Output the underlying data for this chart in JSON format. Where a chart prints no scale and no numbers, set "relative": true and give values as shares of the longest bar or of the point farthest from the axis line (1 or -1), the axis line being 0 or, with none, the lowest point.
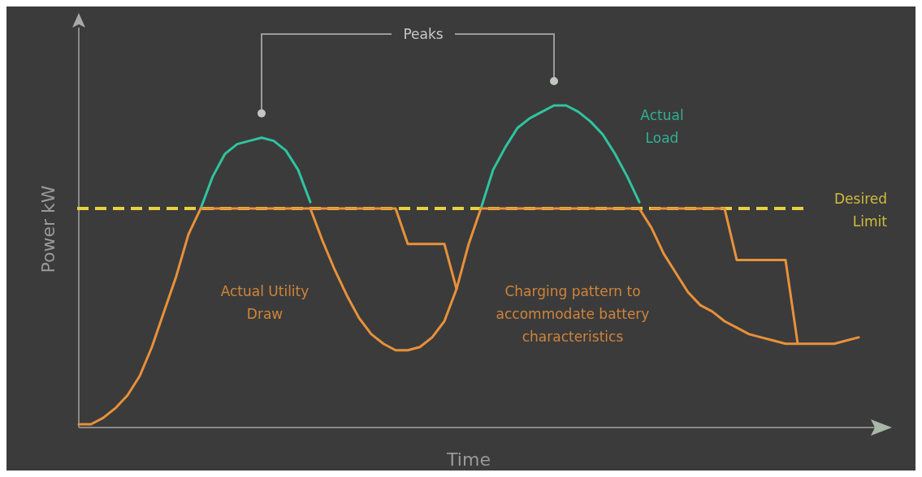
{
  "chart_data": {
    "type": "line",
    "relative": true,
    "xlabel": "Time",
    "ylabel": "Power kW",
    "categories": [
      null,
      null,
      null,
      null,
      null,
      null,
      null,
      null,
      null,
      null,
      null,
      null,
      null,
      null,
      null,
      null,
      null,
      null,
      null,
      null,
      null,
      null,
      null,
      null,
      null,
      null,
      null,
      null,
      null,
      null,
      null,
      null,
      null,
      null,
      null,
      null,
      null,
      null,
      null,
      null,
      null,
      null,
      null,
      null,
      null,
      null,
      null,
      null,
      null,
      null,
      null,
      null,
      null,
      null,
      null,
      null,
      null,
      null,
      null,
      null,
      null,
      null,
      null,
      null,
      null
    ],
    "series": [
      {
        "color": "#2fc4a0",
        "values": [
          null,
          null,
          null,
          null,
          null,
          null,
          null,
          null,
          null,
          null,
          0.68,
          0.78,
          0.85,
          0.88,
          0.89,
          0.9,
          0.89,
          0.86,
          0.8,
          0.7,
          null,
          null,
          null,
          null,
          null,
          null,
          null,
          null,
          null,
          null,
          null,
          null,
          null,
          null,
          null,
          null,
          null,
          null,
          null,
          null,
          null,
          null,
          null,
          null,
          null,
          null,
          null,
          null,
          null,
          null,
          null,
          null,
          null,
          null,
          null,
          null,
          null,
          null,
          null,
          null,
          null,
          null,
          null,
          null,
          null
        ]
      },
      {
        "color": "#2fc4a0",
        "values": [
          null,
          null,
          null,
          null,
          null,
          null,
          null,
          null,
          null,
          null,
          null,
          null,
          null,
          null,
          null,
          null,
          null,
          null,
          null,
          null,
          null,
          null,
          null,
          null,
          null,
          null,
          null,
          null,
          null,
          null,
          null,
          null,
          null,
          0.68,
          0.8,
          0.87,
          0.93,
          0.96,
          0.98,
          1.0,
          1.0,
          0.98,
          0.95,
          0.91,
          0.85,
          0.78,
          0.7,
          null,
          null,
          null,
          null,
          null,
          null,
          null,
          null,
          null,
          null,
          null,
          null,
          null,
          null,
          null,
          null,
          null,
          null
        ]
      },
      {
        "color": "#e8913a",
        "values": [
          0.01,
          0.01,
          0.03,
          0.06,
          0.1,
          0.16,
          0.25,
          0.36,
          0.47,
          0.6,
          0.68,
          0.68,
          0.68,
          0.68,
          0.68,
          0.68,
          0.68,
          0.68,
          0.68,
          0.68,
          0.58,
          0.49,
          0.41,
          0.34,
          0.29,
          0.26,
          0.24,
          0.24,
          0.25,
          0.28,
          0.33,
          0.43,
          0.57,
          0.68,
          0.68,
          0.68,
          0.68,
          0.68,
          0.68,
          0.68,
          0.68,
          0.68,
          0.68,
          0.68,
          0.68,
          0.68,
          0.68,
          0.62,
          0.54,
          0.48,
          0.42,
          0.38,
          0.36,
          0.33,
          0.31,
          0.29,
          0.28,
          0.27,
          0.26,
          0.26,
          0.26,
          0.26,
          0.26,
          0.27,
          0.28
        ]
      },
      {
        "color": "#e8913a",
        "values": [
          null,
          null,
          null,
          null,
          null,
          null,
          null,
          null,
          null,
          null,
          null,
          null,
          null,
          null,
          null,
          null,
          null,
          null,
          null,
          0.68,
          0.68,
          0.68,
          0.68,
          0.68,
          0.68,
          0.68,
          0.68,
          0.57,
          0.57,
          0.57,
          0.57,
          0.43,
          null,
          null,
          null,
          null,
          null,
          null,
          null,
          null,
          null,
          null,
          null,
          null,
          null,
          null,
          null,
          null,
          null,
          null,
          null,
          null,
          null,
          null,
          null,
          null,
          null,
          null,
          null,
          null,
          null,
          null,
          null,
          null,
          null
        ]
      },
      {
        "color": "#e8913a",
        "values": [
          null,
          null,
          null,
          null,
          null,
          null,
          null,
          null,
          null,
          null,
          null,
          null,
          null,
          null,
          null,
          null,
          null,
          null,
          null,
          null,
          null,
          null,
          null,
          null,
          null,
          null,
          null,
          null,
          null,
          null,
          null,
          null,
          null,
          null,
          null,
          null,
          null,
          null,
          null,
          null,
          null,
          null,
          null,
          null,
          null,
          null,
          null,
          0.68,
          0.68,
          0.68,
          0.68,
          0.68,
          0.68,
          0.68,
          0.52,
          0.52,
          0.52,
          0.52,
          0.52,
          0.26,
          null,
          null,
          null,
          null,
          null
        ]
      }
    ],
    "ref_lines": [
      {
        "axis": "y",
        "value": 0.68,
        "label": "Desired Limit",
        "color": "#e8d040",
        "line_style": "dashed"
      }
    ],
    "annotations": [
      "Peaks",
      "Actual Load",
      "Actual Utility Draw",
      "Charging pattern to accommodate battery characteristics"
    ],
    "line_style": "solid"
  }
}
